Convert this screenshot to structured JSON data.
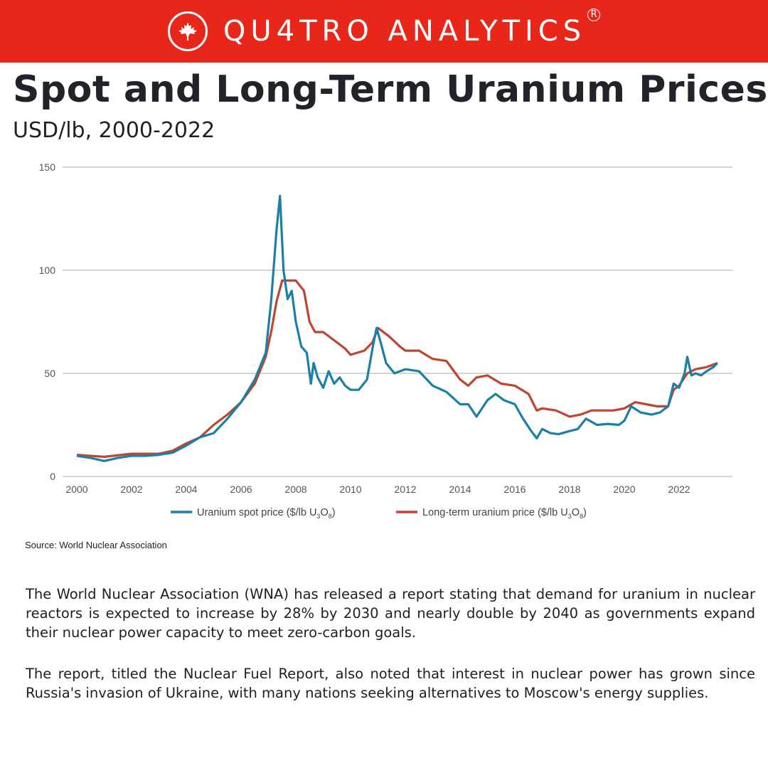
{
  "brand": {
    "name": "QU4TRO ANALYTICS",
    "registered_mark": "R",
    "logo_icon": "maple-leaf-icon",
    "color": "#e8261a"
  },
  "title": "Spot and Long-Term Uranium Prices",
  "subtitle": "USD/lb, 2000-2022",
  "source": "Source: World Nuclear Association",
  "paragraphs": [
    "The World Nuclear Association (WNA) has released a report stating that demand for uranium in nuclear reactors is expected to increase by 28% by 2030 and nearly double by 2040 as governments expand their nuclear power capacity to meet zero-carbon goals.",
    "The report, titled the Nuclear Fuel Report, also noted that interest in nuclear power has grown since Russia's invasion of Ukraine, with many nations seeking alternatives to Moscow's energy supplies."
  ],
  "chart_data": {
    "type": "line",
    "xlim": [
      2000,
      2023
    ],
    "ylim": [
      0,
      150
    ],
    "xticks": [
      2000,
      2002,
      2004,
      2006,
      2008,
      2010,
      2012,
      2014,
      2016,
      2018,
      2020,
      2022
    ],
    "yticks": [
      0,
      50,
      100,
      150
    ],
    "grid": true,
    "legend_position": "bottom",
    "series": [
      {
        "name": "Uranium spot price ($/lb U3O8)",
        "legend_main": "Uranium spot price ($/lb U",
        "legend_sub1": "3",
        "legend_mid": "O",
        "legend_sub2": "8",
        "legend_end": ")",
        "color": "#1b7fa7",
        "points": [
          [
            2000.0,
            10
          ],
          [
            2000.5,
            9
          ],
          [
            2001.0,
            7.5
          ],
          [
            2001.5,
            9
          ],
          [
            2002.0,
            10
          ],
          [
            2002.5,
            10
          ],
          [
            2003.0,
            10.5
          ],
          [
            2003.5,
            11.5
          ],
          [
            2004.0,
            15
          ],
          [
            2004.5,
            19
          ],
          [
            2005.0,
            21
          ],
          [
            2005.5,
            28
          ],
          [
            2006.0,
            36
          ],
          [
            2006.5,
            47
          ],
          [
            2006.9,
            60
          ],
          [
            2007.1,
            85
          ],
          [
            2007.3,
            120
          ],
          [
            2007.42,
            136
          ],
          [
            2007.55,
            100
          ],
          [
            2007.7,
            86
          ],
          [
            2007.85,
            90
          ],
          [
            2008.0,
            75
          ],
          [
            2008.2,
            63
          ],
          [
            2008.4,
            60
          ],
          [
            2008.55,
            45
          ],
          [
            2008.65,
            55
          ],
          [
            2008.8,
            48
          ],
          [
            2009.0,
            43
          ],
          [
            2009.2,
            51
          ],
          [
            2009.4,
            45
          ],
          [
            2009.6,
            48
          ],
          [
            2009.8,
            44
          ],
          [
            2010.0,
            42
          ],
          [
            2010.3,
            42
          ],
          [
            2010.6,
            47
          ],
          [
            2010.8,
            62
          ],
          [
            2010.95,
            72
          ],
          [
            2011.1,
            65
          ],
          [
            2011.3,
            55
          ],
          [
            2011.6,
            50
          ],
          [
            2012.0,
            52
          ],
          [
            2012.5,
            51
          ],
          [
            2013.0,
            44
          ],
          [
            2013.5,
            41
          ],
          [
            2014.0,
            35
          ],
          [
            2014.3,
            35
          ],
          [
            2014.6,
            29
          ],
          [
            2015.0,
            37
          ],
          [
            2015.3,
            40
          ],
          [
            2015.6,
            37
          ],
          [
            2016.0,
            35
          ],
          [
            2016.3,
            28
          ],
          [
            2016.6,
            22
          ],
          [
            2016.8,
            18.5
          ],
          [
            2017.0,
            23
          ],
          [
            2017.3,
            21
          ],
          [
            2017.6,
            20.5
          ],
          [
            2018.0,
            22
          ],
          [
            2018.3,
            23
          ],
          [
            2018.6,
            28
          ],
          [
            2019.0,
            25
          ],
          [
            2019.4,
            25.5
          ],
          [
            2019.8,
            25
          ],
          [
            2020.0,
            27
          ],
          [
            2020.25,
            34
          ],
          [
            2020.6,
            31
          ],
          [
            2021.0,
            30
          ],
          [
            2021.3,
            31
          ],
          [
            2021.6,
            34
          ],
          [
            2021.8,
            45
          ],
          [
            2022.0,
            43
          ],
          [
            2022.2,
            50
          ],
          [
            2022.3,
            58
          ],
          [
            2022.45,
            49
          ],
          [
            2022.6,
            50
          ],
          [
            2022.8,
            49
          ],
          [
            2023.0,
            51
          ],
          [
            2023.25,
            53
          ],
          [
            2023.4,
            55
          ]
        ]
      },
      {
        "name": "Long-term uranium price ($/lb U3O8)",
        "legend_main": "Long-term uranium price ($/lb U",
        "legend_sub1": "3",
        "legend_mid": "O",
        "legend_sub2": "8",
        "legend_end": ")",
        "color": "#c0452e",
        "points": [
          [
            2000.0,
            10.5
          ],
          [
            2001.0,
            9.5
          ],
          [
            2002.0,
            11
          ],
          [
            2003.0,
            11
          ],
          [
            2003.5,
            12.5
          ],
          [
            2004.0,
            16
          ],
          [
            2004.5,
            19
          ],
          [
            2005.0,
            25
          ],
          [
            2005.5,
            30
          ],
          [
            2006.0,
            36
          ],
          [
            2006.5,
            45
          ],
          [
            2006.9,
            58
          ],
          [
            2007.1,
            70
          ],
          [
            2007.3,
            85
          ],
          [
            2007.5,
            95
          ],
          [
            2008.0,
            95
          ],
          [
            2008.3,
            90
          ],
          [
            2008.5,
            75
          ],
          [
            2008.7,
            70
          ],
          [
            2009.0,
            70
          ],
          [
            2009.5,
            65
          ],
          [
            2009.8,
            62
          ],
          [
            2010.0,
            59
          ],
          [
            2010.5,
            61
          ],
          [
            2010.8,
            65
          ],
          [
            2011.0,
            72
          ],
          [
            2011.4,
            68
          ],
          [
            2011.8,
            63
          ],
          [
            2012.0,
            61
          ],
          [
            2012.5,
            61
          ],
          [
            2013.0,
            57
          ],
          [
            2013.5,
            56
          ],
          [
            2014.0,
            47
          ],
          [
            2014.3,
            44
          ],
          [
            2014.6,
            48
          ],
          [
            2015.0,
            49
          ],
          [
            2015.5,
            45
          ],
          [
            2016.0,
            44
          ],
          [
            2016.5,
            40
          ],
          [
            2016.8,
            32
          ],
          [
            2017.0,
            33
          ],
          [
            2017.5,
            32
          ],
          [
            2018.0,
            29
          ],
          [
            2018.4,
            30
          ],
          [
            2018.8,
            32
          ],
          [
            2019.2,
            32
          ],
          [
            2019.6,
            32
          ],
          [
            2020.0,
            33
          ],
          [
            2020.4,
            36
          ],
          [
            2020.8,
            35
          ],
          [
            2021.2,
            34
          ],
          [
            2021.6,
            34
          ],
          [
            2021.8,
            42
          ],
          [
            2022.0,
            44
          ],
          [
            2022.3,
            50
          ],
          [
            2022.6,
            52
          ],
          [
            2023.0,
            53
          ],
          [
            2023.4,
            55
          ]
        ]
      }
    ]
  }
}
